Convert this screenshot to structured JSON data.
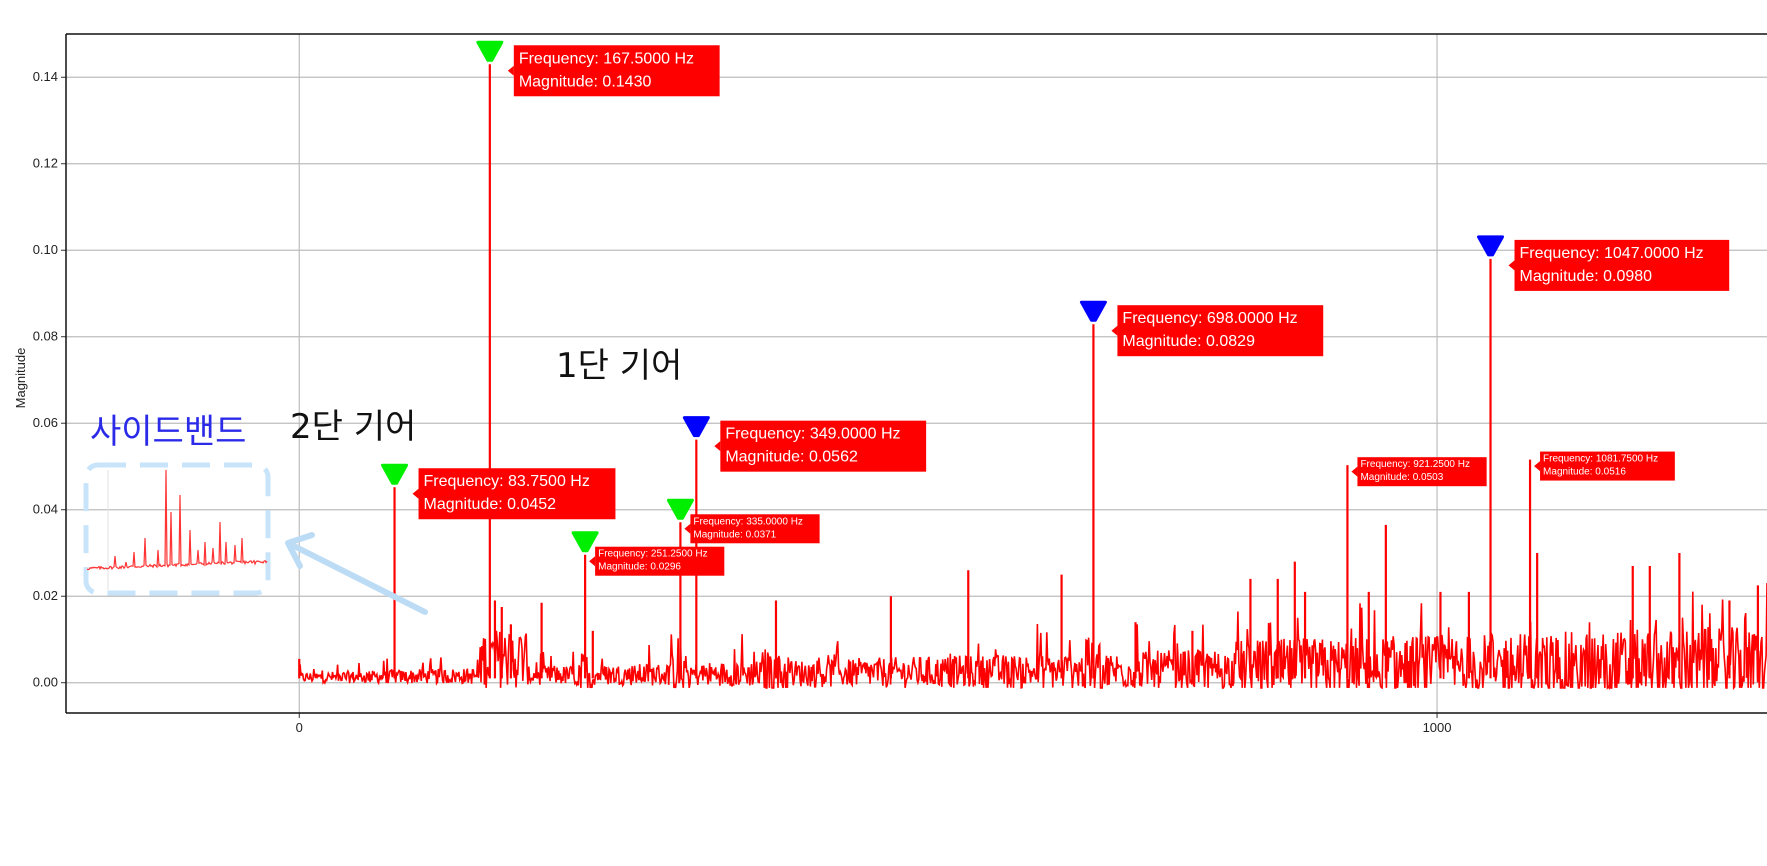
{
  "chart_data": {
    "type": "line",
    "title": "",
    "xlabel": "",
    "ylabel": "Magnitude",
    "xlim": [
      -205,
      1290
    ],
    "ylim": [
      -0.007,
      0.15
    ],
    "x_ticks": [
      0,
      1000
    ],
    "x_tick_labels": [
      "0",
      "1000"
    ],
    "y_ticks": [
      0.0,
      0.02,
      0.04,
      0.06,
      0.08,
      0.1,
      0.12,
      0.14
    ],
    "y_tick_labels": [
      "0.00",
      "0.02",
      "0.04",
      "0.06",
      "0.08",
      "0.10",
      "0.12",
      "0.14"
    ],
    "grid": true,
    "line_color": "#ff0000",
    "series": [
      {
        "peaks": [
          {
            "x": 0,
            "y": 0.0055
          },
          {
            "x": 83.75,
            "y": 0.0452
          },
          {
            "x": 167.5,
            "y": 0.143
          },
          {
            "x": 172,
            "y": 0.019
          },
          {
            "x": 178,
            "y": 0.0175
          },
          {
            "x": 186,
            "y": 0.0135
          },
          {
            "x": 213,
            "y": 0.0185
          },
          {
            "x": 251.25,
            "y": 0.0296
          },
          {
            "x": 258,
            "y": 0.012
          },
          {
            "x": 335,
            "y": 0.0371
          },
          {
            "x": 349,
            "y": 0.0562
          },
          {
            "x": 419,
            "y": 0.019
          },
          {
            "x": 520,
            "y": 0.02
          },
          {
            "x": 588,
            "y": 0.026
          },
          {
            "x": 670,
            "y": 0.025
          },
          {
            "x": 698,
            "y": 0.0829
          },
          {
            "x": 735,
            "y": 0.014
          },
          {
            "x": 785,
            "y": 0.012
          },
          {
            "x": 836,
            "y": 0.024
          },
          {
            "x": 860,
            "y": 0.024
          },
          {
            "x": 875,
            "y": 0.028
          },
          {
            "x": 884,
            "y": 0.021
          },
          {
            "x": 921.25,
            "y": 0.0503
          },
          {
            "x": 940,
            "y": 0.021
          },
          {
            "x": 955,
            "y": 0.0365
          },
          {
            "x": 1003,
            "y": 0.021
          },
          {
            "x": 1028,
            "y": 0.021
          },
          {
            "x": 1047,
            "y": 0.098
          },
          {
            "x": 1081.75,
            "y": 0.0516
          },
          {
            "x": 1088,
            "y": 0.03
          },
          {
            "x": 1172,
            "y": 0.027
          },
          {
            "x": 1187,
            "y": 0.027
          },
          {
            "x": 1213,
            "y": 0.03
          },
          {
            "x": 1257,
            "y": 0.019
          },
          {
            "x": 1282,
            "y": 0.0225
          }
        ]
      }
    ],
    "markers": [
      {
        "x": 83.75,
        "y": 0.0452,
        "color": "#00ee00"
      },
      {
        "x": 167.5,
        "y": 0.143,
        "color": "#00ee00"
      },
      {
        "x": 251.25,
        "y": 0.0296,
        "color": "#00ee00"
      },
      {
        "x": 335,
        "y": 0.0371,
        "color": "#00ee00"
      },
      {
        "x": 349,
        "y": 0.0562,
        "color": "#0000ff"
      },
      {
        "x": 698,
        "y": 0.0829,
        "color": "#0000ff"
      },
      {
        "x": 1047,
        "y": 0.098,
        "color": "#0000ff"
      }
    ],
    "annotations": [
      {
        "x": 83.75,
        "y": 0.0452,
        "size": "big",
        "freq_text": "Frequency: 83.7500 Hz",
        "mag_text": "Magnitude: 0.0452"
      },
      {
        "x": 167.5,
        "y": 0.143,
        "size": "big",
        "freq_text": "Frequency: 167.5000 Hz",
        "mag_text": "Magnitude: 0.1430"
      },
      {
        "x": 251.25,
        "y": 0.0296,
        "size": "small",
        "freq_text": "Frequency: 251.2500 Hz",
        "mag_text": "Magnitude: 0.0296"
      },
      {
        "x": 335,
        "y": 0.0371,
        "size": "small",
        "freq_text": "Frequency: 335.0000 Hz",
        "mag_text": "Magnitude: 0.0371"
      },
      {
        "x": 349,
        "y": 0.0562,
        "size": "big",
        "freq_text": "Frequency: 349.0000 Hz",
        "mag_text": "Magnitude: 0.0562"
      },
      {
        "x": 698,
        "y": 0.0829,
        "size": "big",
        "freq_text": "Frequency: 698.0000 Hz",
        "mag_text": "Magnitude: 0.0829"
      },
      {
        "x": 921.25,
        "y": 0.0503,
        "size": "small",
        "freq_text": "Frequency: 921.2500 Hz",
        "mag_text": "Magnitude: 0.0503"
      },
      {
        "x": 1047,
        "y": 0.098,
        "size": "big",
        "freq_text": "Frequency: 1047.0000 Hz",
        "mag_text": "Magnitude: 0.0980"
      },
      {
        "x": 1081.75,
        "y": 0.0516,
        "size": "small",
        "freq_text": "Frequency: 1081.7500 Hz",
        "mag_text": "Magnitude: 0.0516"
      }
    ],
    "text_annotations": {
      "gear_1": "1단 기어",
      "gear_2": "2단 기어",
      "sideband": "사이드밴드"
    }
  }
}
